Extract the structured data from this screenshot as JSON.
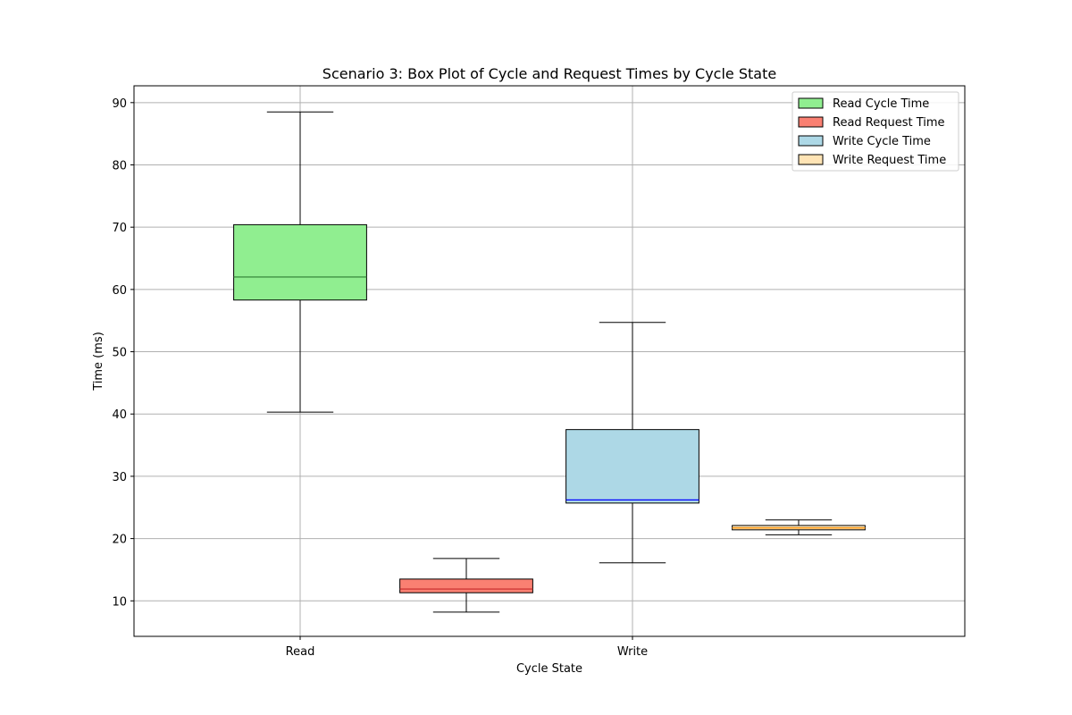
{
  "chart_data": {
    "type": "box",
    "title": "Scenario 3: Box Plot of Cycle and Request Times by Cycle State",
    "xlabel": "Cycle State",
    "ylabel": "Time (ms)",
    "categories": [
      "Read",
      "Write"
    ],
    "ylim": [
      4.3,
      92.7
    ],
    "yticks": [
      10,
      20,
      30,
      40,
      50,
      60,
      70,
      80,
      90
    ],
    "xlim": [
      0.5,
      3.0
    ],
    "grid": true,
    "legend_position": "top-right",
    "series": [
      {
        "name": "Read Cycle Time",
        "x": 1.0,
        "whisker_low": 40.3,
        "q1": 58.3,
        "median": 62.0,
        "q3": 70.4,
        "whisker_high": 88.5,
        "fill": "#90ee90",
        "median_color": "#2e7d32"
      },
      {
        "name": "Read Request Time",
        "x": 1.5,
        "whisker_low": 8.2,
        "q1": 11.3,
        "median": 11.9,
        "q3": 13.5,
        "whisker_high": 16.8,
        "fill": "#fa8072",
        "median_color": "#c62828"
      },
      {
        "name": "Write Cycle Time",
        "x": 2.0,
        "whisker_low": 16.1,
        "q1": 25.7,
        "median": 26.2,
        "q3": 37.5,
        "whisker_high": 54.7,
        "fill": "#add8e6",
        "median_color": "#0000ff"
      },
      {
        "name": "Write Request Time",
        "x": 2.5,
        "whisker_low": 20.6,
        "q1": 21.4,
        "median": 21.7,
        "q3": 22.1,
        "whisker_high": 23.0,
        "fill": "#ffe4b5",
        "median_color": "#ff8c00"
      }
    ]
  }
}
